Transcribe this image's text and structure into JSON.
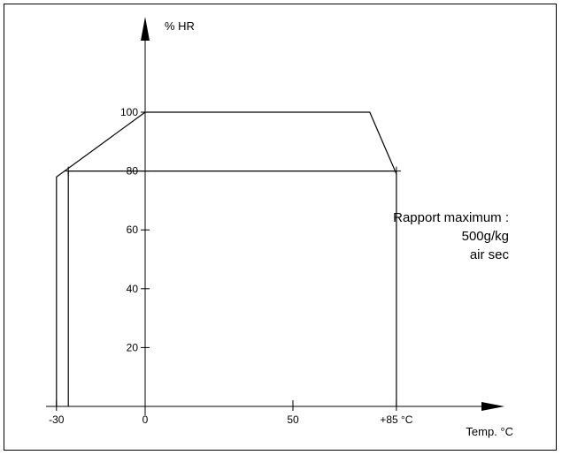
{
  "chart_data": {
    "type": "line",
    "title": "",
    "xlabel": "Temp. °C",
    "ylabel": "% HR",
    "xlim": [
      -35,
      110
    ],
    "ylim": [
      0,
      120
    ],
    "x_ticks": [
      {
        "value": -30,
        "label": "-30"
      },
      {
        "value": 0,
        "label": "0"
      },
      {
        "value": 50,
        "label": "50"
      },
      {
        "value": 85,
        "label": "+85 °C"
      }
    ],
    "y_ticks": [
      {
        "value": 20,
        "label": "20"
      },
      {
        "value": 40,
        "label": "40"
      },
      {
        "value": 60,
        "label": "60"
      },
      {
        "value": 80,
        "label": "80"
      },
      {
        "value": 100,
        "label": "100"
      }
    ],
    "envelope": {
      "x": [
        -30,
        -30,
        0,
        76,
        85,
        85,
        -26,
        -26
      ],
      "y": [
        0,
        78,
        100,
        100,
        79,
        0,
        0,
        80
      ]
    },
    "series": [
      {
        "x": [
          -30,
          -30,
          0,
          76,
          85,
          85
        ],
        "y": [
          0,
          78,
          100,
          100,
          79,
          0
        ]
      },
      {
        "x": [
          -26,
          -26,
          85
        ],
        "y": [
          0,
          80,
          80
        ]
      }
    ],
    "annotation": [
      "Rapport maximum :",
      "500g/kg",
      "air sec"
    ],
    "grid": false,
    "legend": "none"
  }
}
